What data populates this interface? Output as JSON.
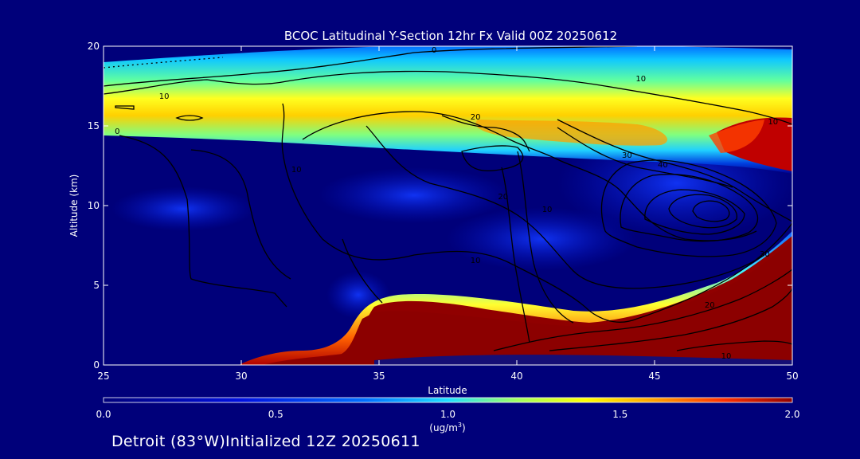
{
  "chart_data": {
    "type": "heatmap",
    "title": "BCOC Latitudinal Y-Section 12hr  Fx Valid 00Z 20250612",
    "xlabel": "Latitude",
    "ylabel": "Altitude (km)",
    "xlim": [
      25,
      50
    ],
    "ylim": [
      0,
      20
    ],
    "x_ticks": [
      25,
      30,
      35,
      40,
      45,
      50
    ],
    "y_ticks": [
      0,
      5,
      10,
      15,
      20
    ],
    "colorbar": {
      "label": "(ug/m",
      "label_sup": "3",
      "label_end": ")",
      "min": 0.0,
      "max": 2.0,
      "ticks": [
        "0.0",
        "0.5",
        "1.0",
        "1.5",
        "2.0"
      ]
    },
    "contour_labels": [
      {
        "text": "0",
        "lat": 37.0,
        "alt": 19.8
      },
      {
        "text": "0",
        "lat": 25.5,
        "alt": 14.7
      },
      {
        "text": "10",
        "lat": 27.2,
        "alt": 16.9
      },
      {
        "text": "10",
        "lat": 41.1,
        "alt": 9.8
      },
      {
        "text": "10",
        "lat": 44.5,
        "alt": 18.0
      },
      {
        "text": "10",
        "lat": 49.3,
        "alt": 15.3
      },
      {
        "text": "10",
        "lat": 32.0,
        "alt": 12.3
      },
      {
        "text": "10",
        "lat": 38.5,
        "alt": 6.6
      },
      {
        "text": "10",
        "lat": 47.6,
        "alt": 0.6
      },
      {
        "text": "20",
        "lat": 38.5,
        "alt": 15.6
      },
      {
        "text": "20",
        "lat": 39.5,
        "alt": 10.6
      },
      {
        "text": "20",
        "lat": 47.0,
        "alt": 3.8
      },
      {
        "text": "30",
        "lat": 44.0,
        "alt": 13.2
      },
      {
        "text": "30",
        "lat": 49.0,
        "alt": 7.0
      },
      {
        "text": "40",
        "lat": 45.3,
        "alt": 12.6
      }
    ]
  },
  "footer": "Detroit (83°W)Initialized 12Z 20250611"
}
